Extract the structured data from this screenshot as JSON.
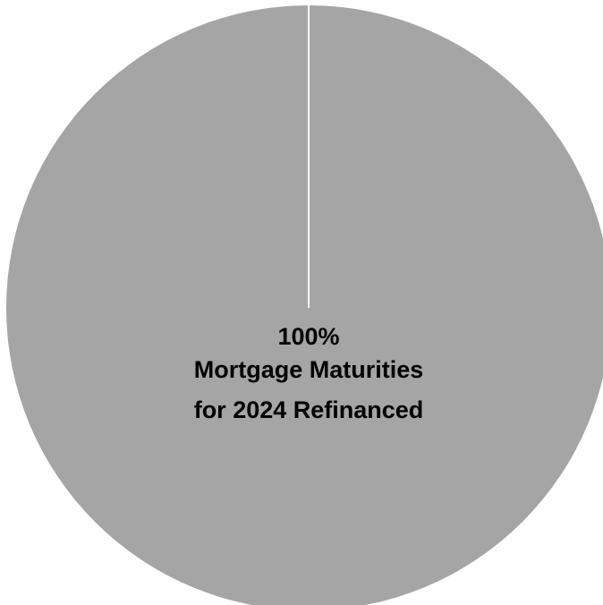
{
  "chart_data": {
    "type": "pie",
    "categories": [
      "Mortgage Maturities for 2024 Refinanced"
    ],
    "values": [
      100
    ],
    "data_labels": [
      {
        "value": "100%",
        "category_lines": [
          "Mortgage Maturities",
          "for 2024 Refinanced"
        ]
      }
    ],
    "colors": [
      "#a5a5a5"
    ],
    "slice_border_color": "#ffffff",
    "title": "",
    "legend": "none"
  }
}
